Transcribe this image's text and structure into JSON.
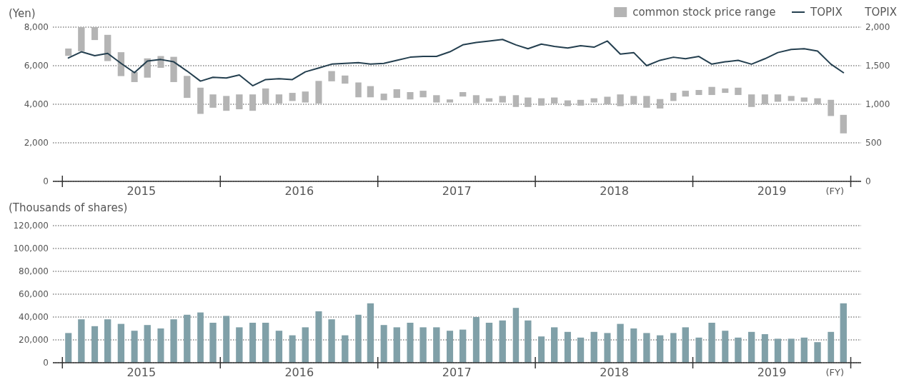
{
  "chart_data": [
    {
      "type": "bar",
      "ylabel": "(Yen)",
      "y2label": "TOPIX",
      "legend": "top right",
      "grid": "y",
      "annotations": [
        "(FY)"
      ],
      "x": [
        "2015-04-15",
        "2015-05-15",
        "2015-06-15",
        "2015-07-15",
        "2015-08-15",
        "2015-09-15",
        "2015-10-15",
        "2015-11-15",
        "2015-12-15",
        "2016-01-15",
        "2016-02-15",
        "2016-03-15",
        "2016-04-15",
        "2016-05-15",
        "2016-06-15",
        "2016-07-15",
        "2016-08-15",
        "2016-09-15",
        "2016-10-15",
        "2016-11-15",
        "2016-12-15",
        "2017-01-15",
        "2017-02-15",
        "2017-03-15",
        "2017-04-15",
        "2017-05-15",
        "2017-06-15",
        "2017-07-15",
        "2017-08-15",
        "2017-09-15",
        "2017-10-15",
        "2017-11-15",
        "2017-12-15",
        "2018-01-15",
        "2018-02-15",
        "2018-03-15",
        "2018-04-15",
        "2018-05-15",
        "2018-06-15",
        "2018-07-15",
        "2018-08-15",
        "2018-09-15",
        "2018-10-15",
        "2018-11-15",
        "2018-12-15",
        "2019-01-15",
        "2019-02-15",
        "2019-03-15",
        "2019-04-15",
        "2019-05-15",
        "2019-06-15",
        "2019-07-15",
        "2019-08-15",
        "2019-09-15",
        "2019-10-15",
        "2019-11-15",
        "2019-12-15",
        "2020-01-15",
        "2020-02-15",
        "2020-03-15"
      ],
      "xlim": [
        "2015-03-10",
        "2020-04-25"
      ],
      "xticks": [
        {
          "value": "2015-04",
          "label": null
        },
        {
          "value": "2015-10",
          "label": "2015"
        },
        {
          "value": "2016-04",
          "label": null
        },
        {
          "value": "2016-10",
          "label": "2016"
        },
        {
          "value": "2017-04",
          "label": null
        },
        {
          "value": "2017-10",
          "label": "2017"
        },
        {
          "value": "2018-04",
          "label": null
        },
        {
          "value": "2018-10",
          "label": "2018"
        },
        {
          "value": "2019-04",
          "label": null
        },
        {
          "value": "2019-10",
          "label": "2019"
        },
        {
          "value": "2020-04",
          "label": null
        }
      ],
      "ylim": [
        0,
        8000
      ],
      "yticks": [
        0,
        {
          "value": 2000,
          "label": "2,000"
        },
        {
          "value": 4000,
          "label": "4,000"
        },
        {
          "value": 6000,
          "label": "6,000"
        },
        {
          "value": 8000,
          "label": "8,000"
        }
      ],
      "y2lim": [
        0,
        2000
      ],
      "y2ticks": [
        0,
        500,
        {
          "value": 1000,
          "label": "1,000"
        },
        {
          "value": 1500,
          "label": "1,500"
        },
        {
          "value": 2000,
          "label": "2,000"
        }
      ],
      "series": [
        {
          "name": "common stock price range",
          "color": "#b4b4b4",
          "base": [
            6510,
            6750,
            7330,
            6240,
            5460,
            5150,
            5380,
            5890,
            5150,
            4330,
            3500,
            3820,
            3660,
            3740,
            3660,
            4010,
            4040,
            4170,
            4090,
            4040,
            5190,
            5070,
            4360,
            4360,
            4210,
            4330,
            4250,
            4360,
            4090,
            4090,
            4400,
            4050,
            4130,
            4090,
            3860,
            3860,
            3930,
            4040,
            3900,
            3930,
            4090,
            3990,
            3900,
            3990,
            3820,
            3780,
            4170,
            4400,
            4480,
            4480,
            4590,
            4480,
            3860,
            3990,
            4130,
            4170,
            4130,
            3990,
            3390,
            2490
          ],
          "values": [
            380,
            1250,
            670,
            1360,
            1240,
            520,
            1000,
            610,
            1310,
            1140,
            1360,
            690,
            770,
            770,
            850,
            810,
            470,
            420,
            570,
            1170,
            530,
            420,
            770,
            580,
            340,
            450,
            380,
            340,
            380,
            160,
            230,
            420,
            180,
            340,
            610,
            490,
            380,
            310,
            300,
            300,
            220,
            400,
            610,
            440,
            610,
            490,
            420,
            300,
            260,
            420,
            230,
            380,
            650,
            520,
            380,
            260,
            220,
            320,
            840,
            960
          ]
        },
        {
          "type": "line",
          "name": "TOPIX",
          "color": "#243f4f",
          "axis": "y2",
          "values": [
            1600,
            1680,
            1630,
            1660,
            1530,
            1410,
            1560,
            1580,
            1550,
            1430,
            1300,
            1350,
            1340,
            1380,
            1240,
            1320,
            1330,
            1320,
            1420,
            1470,
            1520,
            1530,
            1540,
            1520,
            1530,
            1570,
            1610,
            1620,
            1620,
            1680,
            1770,
            1800,
            1820,
            1840,
            1770,
            1720,
            1780,
            1750,
            1730,
            1760,
            1740,
            1820,
            1650,
            1670,
            1500,
            1570,
            1610,
            1590,
            1620,
            1520,
            1550,
            1570,
            1520,
            1590,
            1670,
            1710,
            1720,
            1690,
            1520,
            1410
          ]
        }
      ]
    },
    {
      "type": "bar",
      "ylabel": "(Thousands of shares)",
      "grid": "y",
      "annotations": [
        "(FY)"
      ],
      "color": "#80a0a8",
      "x": [
        "2015-04-15",
        "2015-05-15",
        "2015-06-15",
        "2015-07-15",
        "2015-08-15",
        "2015-09-15",
        "2015-10-15",
        "2015-11-15",
        "2015-12-15",
        "2016-01-15",
        "2016-02-15",
        "2016-03-15",
        "2016-04-15",
        "2016-05-15",
        "2016-06-15",
        "2016-07-15",
        "2016-08-15",
        "2016-09-15",
        "2016-10-15",
        "2016-11-15",
        "2016-12-15",
        "2017-01-15",
        "2017-02-15",
        "2017-03-15",
        "2017-04-15",
        "2017-05-15",
        "2017-06-15",
        "2017-07-15",
        "2017-08-15",
        "2017-09-15",
        "2017-10-15",
        "2017-11-15",
        "2017-12-15",
        "2018-01-15",
        "2018-02-15",
        "2018-03-15",
        "2018-04-15",
        "2018-05-15",
        "2018-06-15",
        "2018-07-15",
        "2018-08-15",
        "2018-09-15",
        "2018-10-15",
        "2018-11-15",
        "2018-12-15",
        "2019-01-15",
        "2019-02-15",
        "2019-03-15",
        "2019-04-15",
        "2019-05-15",
        "2019-06-15",
        "2019-07-15",
        "2019-08-15",
        "2019-09-15",
        "2019-10-15",
        "2019-11-15",
        "2019-12-15",
        "2020-01-15",
        "2020-02-15",
        "2020-03-15"
      ],
      "xlim": [
        "2015-03-10",
        "2020-04-25"
      ],
      "xticks": [
        {
          "value": "2015-04",
          "label": null
        },
        {
          "value": "2015-10",
          "label": "2015"
        },
        {
          "value": "2016-04",
          "label": null
        },
        {
          "value": "2016-10",
          "label": "2016"
        },
        {
          "value": "2017-04",
          "label": null
        },
        {
          "value": "2017-10",
          "label": "2017"
        },
        {
          "value": "2018-04",
          "label": null
        },
        {
          "value": "2018-10",
          "label": "2018"
        },
        {
          "value": "2019-04",
          "label": null
        },
        {
          "value": "2019-10",
          "label": "2019"
        },
        {
          "value": "2020-04",
          "label": null
        }
      ],
      "ylim": [
        0,
        120000
      ],
      "yticks": [
        0,
        {
          "value": 20000,
          "label": "20,000"
        },
        {
          "value": 40000,
          "label": "40,000"
        },
        {
          "value": 60000,
          "label": "60,000"
        },
        {
          "value": 80000,
          "label": "80,000"
        },
        {
          "value": 100000,
          "label": "100,000"
        },
        {
          "value": 120000,
          "label": "120,000"
        }
      ],
      "values": [
        26000,
        38000,
        32000,
        38000,
        34000,
        28000,
        33000,
        30000,
        38000,
        42000,
        44000,
        35000,
        41000,
        31000,
        35000,
        35000,
        28000,
        24000,
        31000,
        45000,
        38000,
        24000,
        42000,
        52000,
        33000,
        31000,
        35000,
        31000,
        31000,
        28000,
        29000,
        40000,
        35000,
        37000,
        48000,
        37000,
        23000,
        31000,
        27000,
        22000,
        27000,
        26000,
        34000,
        30000,
        26000,
        24000,
        26000,
        31000,
        22000,
        35000,
        28000,
        22000,
        27000,
        25000,
        21000,
        21000,
        22000,
        18000,
        27000,
        52000
      ]
    }
  ]
}
